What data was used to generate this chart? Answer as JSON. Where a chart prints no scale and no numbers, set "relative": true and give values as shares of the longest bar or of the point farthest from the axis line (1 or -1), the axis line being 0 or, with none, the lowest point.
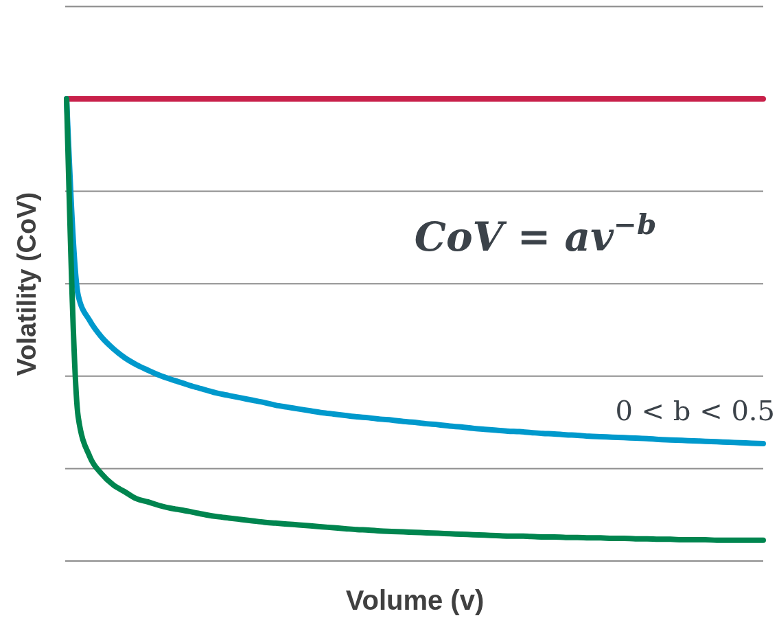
{
  "chart_data": {
    "type": "line",
    "relative": true,
    "grid": true,
    "xlabel": "Volume (v)",
    "ylabel": "Volatility (CoV)",
    "annotations": [
      "CoV = av$^{−b}$"
    ],
    "categories": [
      null,
      null,
      null,
      null,
      null,
      null,
      null,
      null,
      null,
      null,
      null,
      null,
      null,
      null,
      null,
      null,
      null,
      null,
      null,
      null,
      null,
      null,
      null,
      null,
      null,
      null,
      null,
      null,
      null,
      null,
      null,
      null,
      null,
      null,
      null,
      null,
      null,
      null,
      null,
      null,
      null,
      null,
      null,
      null,
      null,
      null,
      null,
      null,
      null,
      null,
      null,
      null,
      null,
      null,
      null,
      null,
      null,
      null,
      null,
      null,
      null
    ],
    "series": [
      {
        "color": "#c8204a",
        "values": [
          1,
          1,
          1,
          1,
          1,
          1,
          1,
          1,
          1,
          1,
          1,
          1,
          1,
          1,
          1,
          1,
          1,
          1,
          1,
          1,
          1,
          1,
          1,
          1,
          1,
          1,
          1,
          1,
          1,
          1,
          1,
          1,
          1,
          1,
          1,
          1,
          1,
          1,
          1,
          1,
          1,
          1,
          1,
          1,
          1,
          1,
          1,
          1,
          1,
          1,
          1,
          1,
          1,
          1,
          1,
          1,
          1,
          1,
          1,
          1,
          1
        ]
      },
      {
        "name": "0 < b < 0.5",
        "color": "#0099cc",
        "values": [
          1,
          0.575,
          0.52,
          0.485,
          0.46,
          0.44,
          0.425,
          0.413,
          0.402,
          0.393,
          0.385,
          0.377,
          0.37,
          0.363,
          0.358,
          0.353,
          0.348,
          0.343,
          0.337,
          0.333,
          0.329,
          0.325,
          0.321,
          0.318,
          0.315,
          0.312,
          0.31,
          0.307,
          0.305,
          0.302,
          0.3,
          0.297,
          0.295,
          0.292,
          0.29,
          0.287,
          0.285,
          0.283,
          0.281,
          0.28,
          0.278,
          0.276,
          0.275,
          0.273,
          0.272,
          0.27,
          0.269,
          0.268,
          0.267,
          0.266,
          0.265,
          0.263,
          0.262,
          0.261,
          0.26,
          0.259,
          0.258,
          0.257,
          0.256,
          0.255,
          0.254
        ]
      },
      {
        "color": "#00854f",
        "values": [
          1,
          0.312,
          0.226,
          0.189,
          0.165,
          0.15,
          0.135,
          0.128,
          0.12,
          0.114,
          0.11,
          0.105,
          0.1,
          0.096,
          0.093,
          0.09,
          0.087,
          0.084,
          0.082,
          0.08,
          0.078,
          0.076,
          0.074,
          0.072,
          0.07,
          0.068,
          0.067,
          0.065,
          0.064,
          0.063,
          0.062,
          0.061,
          0.06,
          0.059,
          0.058,
          0.057,
          0.056,
          0.055,
          0.054,
          0.054,
          0.053,
          0.052,
          0.052,
          0.051,
          0.051,
          0.05,
          0.05,
          0.049,
          0.049,
          0.048,
          0.048,
          0.047,
          0.047,
          0.046,
          0.046,
          0.046,
          0.045,
          0.045,
          0.045,
          0.045,
          0.045
        ]
      }
    ]
  }
}
